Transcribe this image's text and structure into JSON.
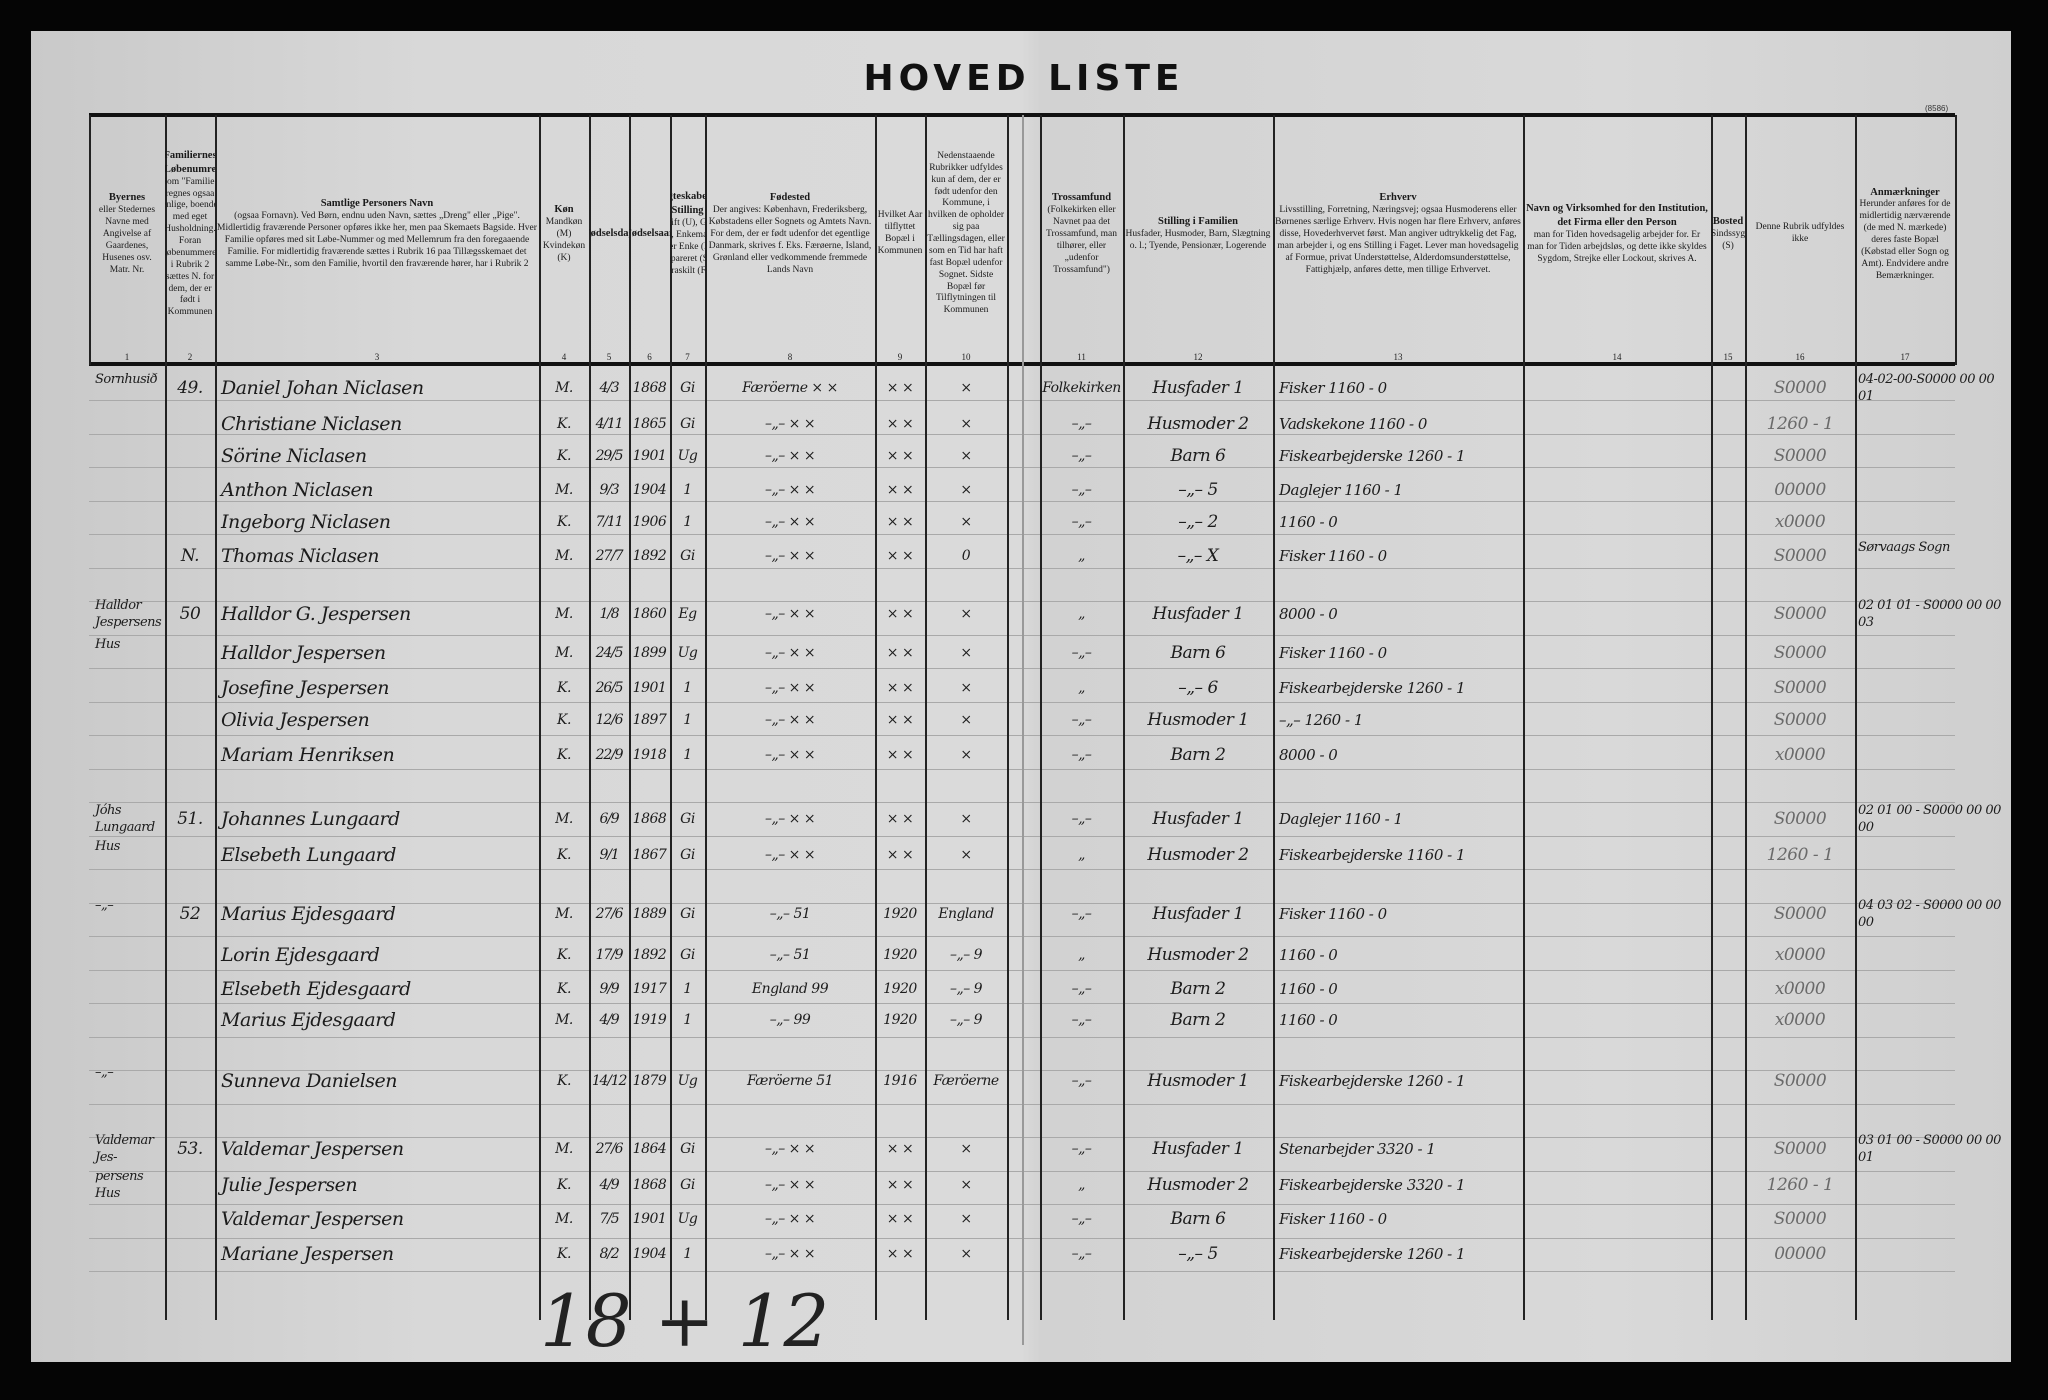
{
  "title": "HOVED LISTE",
  "page_mark": "(8586)",
  "headers": [
    {
      "num": "1",
      "title": "Byernes",
      "text": "eller Stedernes Navne med Angivelse af Gaardenes, Husenes osv. Matr. Nr."
    },
    {
      "num": "2",
      "title": "Familiernes Løbenumre",
      "text": "Som \"Familie\" regnes ogsaa enlige, boende med eget Husholdning. Foran Løbenummeret i Rubrik 2 sættes N. for dem, der er født i Kommunen"
    },
    {
      "num": "3",
      "title": "Samtlige Personers Navn",
      "text": "(ogsaa Fornavn). Ved Børn, endnu uden Navn, sættes „Dreng\" eller „Pige\". Midlertidig fraværende Personer opføres ikke her, men paa Skemaets Bagside. Hver Familie opføres med sit Løbe-Nummer og med Mellemrum fra den foregaaende Familie. For midlertidig fraværende sættes i Rubrik 16 paa Tillægsskemaet det samme Løbe-Nr., som den Familie, hvortil den fraværende hører, har i Rubrik 2"
    },
    {
      "num": "4",
      "title": "Køn",
      "text": "Mandkøn (M) Kvindekøn (K)"
    },
    {
      "num": "5",
      "title": "Fødselsdag",
      "text": ""
    },
    {
      "num": "6",
      "title": "Fødselsaar",
      "text": ""
    },
    {
      "num": "7",
      "title": "Ægteskabelig Stilling",
      "text": "Ugift (U), Gift (G), Enkemand eller Enke (E), Separeret (S), Fraskilt (F)"
    },
    {
      "num": "8",
      "title": "Fødested",
      "text": "Der angives: København, Frederiksberg, Købstadens eller Sognets og Amtets Navn. For dem, der er født udenfor det egentlige Danmark, skrives f. Eks. Færøerne, Island, Grønland eller vedkommende fremmede Lands Navn"
    },
    {
      "num": "9",
      "title": "",
      "text": "Hvilket Aar tilflyttet Bopæl i Kommunen"
    },
    {
      "num": "10",
      "title": "",
      "text": "Nedenstaaende Rubrikker udfyldes kun af dem, der er født udenfor den Kommune, i hvilken de opholder sig paa Tællingsdagen, eller som en Tid har haft fast Bopæl udenfor Sognet. Sidste Bopæl før Tilflytningen til Kommunen"
    },
    {
      "num": "11",
      "title": "Trossamfund",
      "text": "(Folkekirken eller Navnet paa det Trossamfund, man tilhører, eller „udenfor Trossamfund\")"
    },
    {
      "num": "12",
      "title": "Stilling i Familien",
      "text": "Husfader, Husmoder, Barn, Slægtning o. l.; Tyende, Pensionær, Logerende"
    },
    {
      "num": "13",
      "title": "Erhverv",
      "text": "Livsstilling, Forretning, Næringsvej; ogsaa Husmoderens eller Børnenes særlige Erhverv. Hvis nogen har flere Erhverv, anføres disse, Hovederhvervet først. Man angiver udtrykkelig det Fag, man arbejder i, og ens Stilling i Faget. Lever man hovedsagelig af Formue, privat Understøttelse, Alderdomsunderstøttelse, Fattighjælp, anføres dette, men tillige Erhvervet."
    },
    {
      "num": "14",
      "title": "Navn og Virksomhed for den Institution, det Firma eller den Person",
      "text": "man for Tiden hovedsagelig arbejder for. Er man for Tiden arbejdsløs, og dette ikke skyldes Sygdom, Strejke eller Lockout, skrives A."
    },
    {
      "num": "15",
      "title": "Bosted",
      "text": "Sindssyg (S)"
    },
    {
      "num": "16",
      "title": "",
      "text": "Denne Rubrik udfyldes ikke"
    },
    {
      "num": "17",
      "title": "Anmærkninger",
      "text": "Herunder anføres for de midlertidig nærværende (de med N. mærkede) deres faste Bopæl (Købstad eller Sogn og Amt). Endvidere andre Bemærkninger."
    }
  ],
  "rows": [
    [
      "Sornhusið",
      "49.",
      "Daniel Johan Niclasen",
      "M.",
      "4/3",
      "1868",
      "Gi",
      "Færöerne  × ×",
      "× ×",
      "×",
      "Folkekirken",
      "Husfader 1",
      "Fisker 1160 - 0",
      "",
      "",
      "S0000",
      "04-02-00-S0000 00 00 01"
    ],
    [
      "",
      "",
      "Christiane Niclasen",
      "K.",
      "4/11",
      "1865",
      "Gi",
      "–„– × ×",
      "× ×",
      "×",
      "–„–",
      "Husmoder 2",
      "Vadskekone 1160 - 0",
      "",
      "",
      "1260 - 1",
      ""
    ],
    [
      "",
      "",
      "Sörine Niclasen",
      "K.",
      "29/5",
      "1901",
      "Ug",
      "–„– × ×",
      "× ×",
      "×",
      "–„–",
      "Barn 6",
      "Fiskearbejderske 1260 - 1",
      "",
      "",
      "S0000",
      ""
    ],
    [
      "",
      "",
      "Anthon Niclasen",
      "M.",
      "9/3",
      "1904",
      "1",
      "–„– × ×",
      "× ×",
      "×",
      "–„–",
      "–„– 5",
      "Daglejer 1160 - 1",
      "",
      "",
      "00000",
      ""
    ],
    [
      "",
      "",
      "Ingeborg Niclasen",
      "K.",
      "7/11",
      "1906",
      "1",
      "–„– × ×",
      "× ×",
      "×",
      "–„–",
      "–„– 2",
      "1160 - 0",
      "",
      "",
      "x0000",
      ""
    ],
    [
      "",
      "N.",
      "Thomas Niclasen",
      "M.",
      "27/7",
      "1892",
      "Gi",
      "–„– × ×",
      "× ×",
      "0",
      "„",
      "–„– X",
      "Fisker 1160 - 0",
      "",
      "",
      "S0000",
      "Sørvaags Sogn"
    ],
    [
      "Halldor Jespersens",
      "50",
      "Halldor G. Jespersen",
      "M.",
      "1/8",
      "1860",
      "Eg",
      "–„– × ×",
      "× ×",
      "×",
      "„",
      "Husfader 1",
      "8000 - 0",
      "",
      "",
      "S0000",
      "02 01 01 - S0000 00 00 03"
    ],
    [
      "Hus",
      "",
      "Halldor Jespersen",
      "M.",
      "24/5",
      "1899",
      "Ug",
      "–„– × ×",
      "× ×",
      "×",
      "–„–",
      "Barn 6",
      "Fisker 1160 - 0",
      "",
      "",
      "S0000",
      ""
    ],
    [
      "",
      "",
      "Josefine Jespersen",
      "K.",
      "26/5",
      "1901",
      "1",
      "–„– × ×",
      "× ×",
      "×",
      "„",
      "–„– 6",
      "Fiskearbejderske 1260 - 1",
      "",
      "",
      "S0000",
      ""
    ],
    [
      "",
      "",
      "Olivia Jespersen",
      "K.",
      "12/6",
      "1897",
      "1",
      "–„– × ×",
      "× ×",
      "×",
      "–„–",
      "Husmoder 1",
      "–„– 1260 - 1",
      "",
      "",
      "S0000",
      ""
    ],
    [
      "",
      "",
      "Mariam Henriksen",
      "K.",
      "22/9",
      "1918",
      "1",
      "–„– × ×",
      "× ×",
      "×",
      "–„–",
      "Barn 2",
      "8000 - 0",
      "",
      "",
      "x0000",
      ""
    ],
    [
      "Jóhs Lungaard",
      "51.",
      "Johannes Lungaard",
      "M.",
      "6/9",
      "1868",
      "Gi",
      "–„– × ×",
      "× ×",
      "×",
      "–„–",
      "Husfader 1",
      "Daglejer 1160 - 1",
      "",
      "",
      "S0000",
      "02 01 00 - S0000 00 00 00"
    ],
    [
      "Hus",
      "",
      "Elsebeth Lungaard",
      "K.",
      "9/1",
      "1867",
      "Gi",
      "–„– × ×",
      "× ×",
      "×",
      "„",
      "Husmoder 2",
      "Fiskearbejderske 1160 - 1",
      "",
      "",
      "1260 - 1",
      ""
    ],
    [
      "–„–",
      "52",
      "Marius Ejdesgaard",
      "M.",
      "27/6",
      "1889",
      "Gi",
      "–„– 51",
      "1920",
      "England",
      "–„–",
      "Husfader 1",
      "Fisker 1160 - 0",
      "",
      "",
      "S0000",
      "04 03 02 - S0000 00 00 00"
    ],
    [
      "",
      "",
      "Lorin Ejdesgaard",
      "K.",
      "17/9",
      "1892",
      "Gi",
      "–„– 51",
      "1920",
      "–„– 9",
      "„",
      "Husmoder 2",
      "1160 - 0",
      "",
      "",
      "x0000",
      ""
    ],
    [
      "",
      "",
      "Elsebeth Ejdesgaard",
      "K.",
      "9/9",
      "1917",
      "1",
      "England 99",
      "1920",
      "–„– 9",
      "–„–",
      "Barn 2",
      "1160 - 0",
      "",
      "",
      "x0000",
      ""
    ],
    [
      "",
      "",
      "Marius Ejdesgaard",
      "M.",
      "4/9",
      "1919",
      "1",
      "–„– 99",
      "1920",
      "–„– 9",
      "–„–",
      "Barn 2",
      "1160 - 0",
      "",
      "",
      "x0000",
      ""
    ],
    [
      "–„–",
      "",
      "Sunneva Danielsen",
      "K.",
      "14/12",
      "1879",
      "Ug",
      "Færöerne 51",
      "1916",
      "Færöerne",
      "–„–",
      "Husmoder 1",
      "Fiskearbejderske 1260 - 1",
      "",
      "",
      "S0000",
      ""
    ],
    [
      "Valdemar Jes-",
      "53.",
      "Valdemar Jespersen",
      "M.",
      "27/6",
      "1864",
      "Gi",
      "–„– × ×",
      "× ×",
      "×",
      "–„–",
      "Husfader 1",
      "Stenarbejder 3320 - 1",
      "",
      "",
      "S0000",
      "03 01 00 - S0000 00 00 01"
    ],
    [
      "persens Hus",
      "",
      "Julie Jespersen",
      "K.",
      "4/9",
      "1868",
      "Gi",
      "–„– × ×",
      "× ×",
      "×",
      "„",
      "Husmoder 2",
      "Fiskearbejderske 3320 - 1",
      "",
      "",
      "1260 - 1",
      ""
    ],
    [
      "",
      "",
      "Valdemar Jespersen",
      "M.",
      "7/5",
      "1901",
      "Ug",
      "–„– × ×",
      "× ×",
      "×",
      "–„–",
      "Barn 6",
      "Fisker 1160 - 0",
      "",
      "",
      "S0000",
      ""
    ],
    [
      "",
      "",
      "Mariane Jespersen",
      "K.",
      "8/2",
      "1904",
      "1",
      "–„– × ×",
      "× ×",
      "×",
      "–„–",
      "–„– 5",
      "Fiskearbejderske 1260 - 1",
      "",
      "",
      "00000",
      ""
    ]
  ],
  "tally": "18 + 12"
}
